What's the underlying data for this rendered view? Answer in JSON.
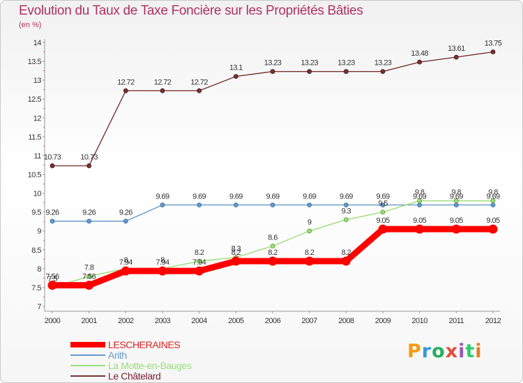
{
  "title": "Evolution du Taux de Taxe Foncière sur les Propriétés Bâties",
  "subtitle": "(en %)",
  "brand": {
    "text": "Proxiti",
    "colors": [
      "#f39c12",
      "#3498db",
      "#27ae60",
      "#e74c3c",
      "#9b59b6",
      "#2ecc71",
      "#e67e22"
    ]
  },
  "chart_data": {
    "type": "line",
    "title": "Evolution du Taux de Taxe Foncière sur les Propriétés Bâties",
    "ylabel": "(en %)",
    "xlabel": "",
    "categories": [
      "2000",
      "2001",
      "2002",
      "2003",
      "2004",
      "2005",
      "2006",
      "2007",
      "2008",
      "2009",
      "2010",
      "2011",
      "2012"
    ],
    "ylim": [
      7,
      14
    ],
    "yticks": [
      "7",
      "7.5",
      "8",
      "8.5",
      "9",
      "9.5",
      "10",
      "10.5",
      "11",
      "11.5",
      "12",
      "12.5",
      "13",
      "13.5",
      "14"
    ],
    "grid": false,
    "legend_position": "bottom-left",
    "series": [
      {
        "name": "LESCHERAINES",
        "color": "#ff0000",
        "values": [
          7.56,
          7.56,
          7.94,
          7.94,
          7.94,
          8.2,
          8.2,
          8.2,
          8.2,
          9.05,
          9.05,
          9.05,
          9.05
        ],
        "labels": [
          "7.56",
          "7.56",
          "7.94",
          "7.94",
          "7.94",
          "8.2",
          "8.2",
          "8.2",
          "8.2",
          "9.05",
          "9.05",
          "9.05",
          "9.05"
        ]
      },
      {
        "name": "Arith",
        "color": "#6699cc",
        "values": [
          9.26,
          9.26,
          9.26,
          9.69,
          9.69,
          9.69,
          9.69,
          9.69,
          9.69,
          9.69,
          9.69,
          9.69,
          9.69
        ],
        "labels": [
          "9.26",
          "9.26",
          "9.26",
          "9.69",
          "9.69",
          "9.69",
          "9.69",
          "9.69",
          "9.69",
          "9.69",
          "9.69",
          "9.69",
          "9.69"
        ]
      },
      {
        "name": "La Motte-en-Bauges",
        "color": "#99dd77",
        "values": [
          7.5,
          7.8,
          8.0,
          8.0,
          8.2,
          8.3,
          8.6,
          9.0,
          9.3,
          9.5,
          9.8,
          9.8,
          9.8
        ],
        "labels": [
          "7.5",
          "7.8",
          "8",
          "8",
          "8.2",
          "8.3",
          "8.6",
          "9",
          "9.3",
          "9.5",
          "9.8",
          "9.8",
          "9.8"
        ]
      },
      {
        "name": "Le Châtelard",
        "color": "#773333",
        "values": [
          10.73,
          10.73,
          12.72,
          12.72,
          12.72,
          13.1,
          13.23,
          13.23,
          13.23,
          13.23,
          13.48,
          13.61,
          13.75
        ],
        "labels": [
          "10.73",
          "10.73",
          "12.72",
          "12.72",
          "12.72",
          "13.1",
          "13.23",
          "13.23",
          "13.23",
          "13.23",
          "13.48",
          "13.61",
          "13.75"
        ]
      }
    ]
  }
}
